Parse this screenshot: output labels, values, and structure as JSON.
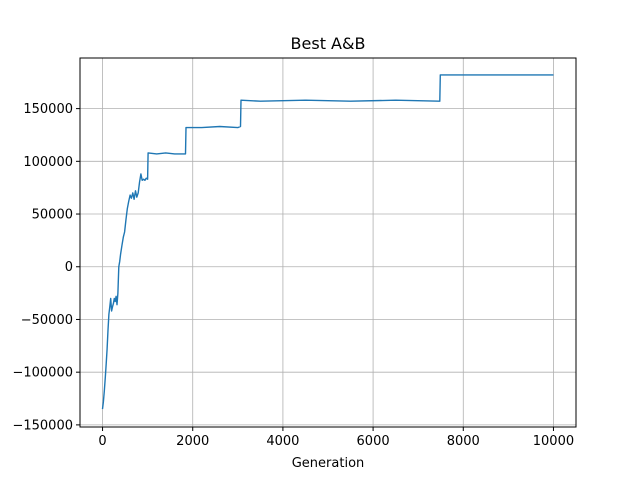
{
  "chart_data": {
    "type": "line",
    "title": "Best A&B",
    "xlabel": "Generation",
    "ylabel": "",
    "xlim": [
      -500,
      10500
    ],
    "ylim": [
      -152000,
      198000
    ],
    "grid": true,
    "x_ticks": [
      0,
      2000,
      4000,
      6000,
      8000,
      10000
    ],
    "x_tick_labels": [
      "0",
      "2000",
      "4000",
      "6000",
      "8000",
      "10000"
    ],
    "y_ticks": [
      -150000,
      -100000,
      -50000,
      0,
      50000,
      100000,
      150000
    ],
    "y_tick_labels": [
      "−150000",
      "−100000",
      "−50000",
      "0",
      "50000",
      "100000",
      "150000"
    ],
    "series": [
      {
        "color": "#1f77b4",
        "x": [
          0,
          20,
          40,
          60,
          80,
          100,
          120,
          140,
          160,
          180,
          200,
          220,
          240,
          260,
          280,
          300,
          320,
          340,
          360,
          380,
          400,
          430,
          460,
          490,
          520,
          550,
          580,
          610,
          640,
          670,
          700,
          730,
          760,
          790,
          820,
          850,
          880,
          910,
          940,
          970,
          1000,
          1010,
          1200,
          1400,
          1600,
          1840,
          1850,
          2200,
          2600,
          3000,
          3060,
          3070,
          3500,
          4500,
          5500,
          6500,
          7480,
          7490,
          10000
        ],
        "y": [
          -135000,
          -128000,
          -118000,
          -105000,
          -92000,
          -78000,
          -60000,
          -45000,
          -38000,
          -30000,
          -42000,
          -38000,
          -35000,
          -30000,
          -33000,
          -28000,
          -36000,
          -25000,
          0,
          5000,
          12000,
          20000,
          28000,
          33000,
          45000,
          55000,
          62000,
          68000,
          65000,
          70000,
          64000,
          72000,
          66000,
          70000,
          80000,
          88000,
          82000,
          83000,
          82000,
          84000,
          83000,
          108000,
          107000,
          108000,
          107000,
          107000,
          132000,
          132000,
          133000,
          132000,
          133000,
          158000,
          157000,
          158000,
          157000,
          158000,
          157000,
          182000,
          182000
        ]
      }
    ]
  }
}
